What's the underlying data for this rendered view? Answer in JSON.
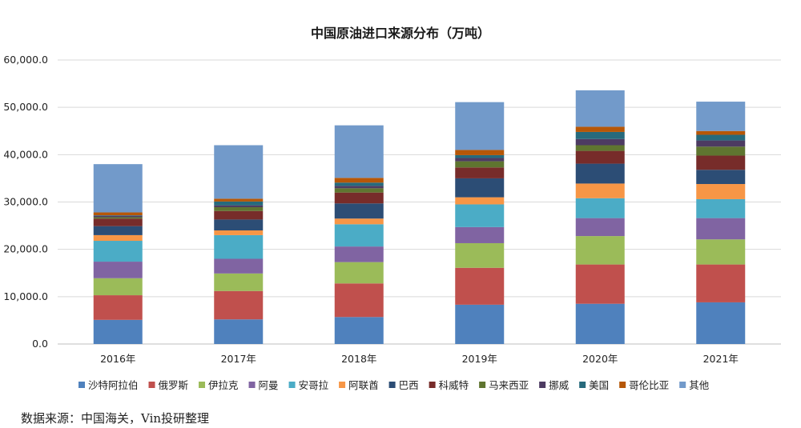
{
  "chart_data": {
    "type": "bar",
    "stacked": true,
    "title": "中国原油进口来源分布（万吨）",
    "categories": [
      "2016年",
      "2017年",
      "2018年",
      "2019年",
      "2020年",
      "2021年"
    ],
    "ylim": [
      0,
      60000
    ],
    "yticks": [
      "0.0",
      "10,000.0",
      "20,000.0",
      "30,000.0",
      "40,000.0",
      "50,000.0",
      "60,000.0"
    ],
    "grid": true,
    "legend_position": "bottom",
    "series": [
      {
        "name": "沙特阿拉伯",
        "color": "#4f81bd",
        "values": [
          5100,
          5200,
          5700,
          8300,
          8500,
          8800
        ]
      },
      {
        "name": "俄罗斯",
        "color": "#c0504d",
        "values": [
          5200,
          6000,
          7100,
          7800,
          8300,
          8000
        ]
      },
      {
        "name": "伊拉克",
        "color": "#9bbb59",
        "values": [
          3600,
          3700,
          4500,
          5200,
          6000,
          5300
        ]
      },
      {
        "name": "阿曼",
        "color": "#8064a2",
        "values": [
          3500,
          3100,
          3300,
          3400,
          3800,
          4500
        ]
      },
      {
        "name": "安哥拉",
        "color": "#4bacc6",
        "values": [
          4400,
          5000,
          4700,
          4800,
          4200,
          4000
        ]
      },
      {
        "name": "阿联酋",
        "color": "#f79646",
        "values": [
          1200,
          1000,
          1200,
          1500,
          3100,
          3200
        ]
      },
      {
        "name": "巴西",
        "color": "#2c4d75",
        "values": [
          1900,
          2300,
          3200,
          4000,
          4200,
          3000
        ]
      },
      {
        "name": "科威特",
        "color": "#772c2a",
        "values": [
          1600,
          1800,
          2300,
          2300,
          2700,
          3000
        ]
      },
      {
        "name": "马来西亚",
        "color": "#5f7530",
        "values": [
          300,
          800,
          900,
          1300,
          1200,
          1900
        ]
      },
      {
        "name": "挪威",
        "color": "#4d3b62",
        "values": [
          300,
          400,
          500,
          700,
          1300,
          1300
        ]
      },
      {
        "name": "美国",
        "color": "#276a7c",
        "values": [
          100,
          800,
          700,
          600,
          1500,
          1200
        ]
      },
      {
        "name": "哥伦比亚",
        "color": "#b65708",
        "values": [
          600,
          600,
          1000,
          1100,
          1100,
          800
        ]
      },
      {
        "name": "其他",
        "color": "#729aca",
        "values": [
          10200,
          11300,
          11100,
          10100,
          7700,
          6200
        ]
      }
    ]
  },
  "source": "数据来源：中国海关，Vin投研整理"
}
